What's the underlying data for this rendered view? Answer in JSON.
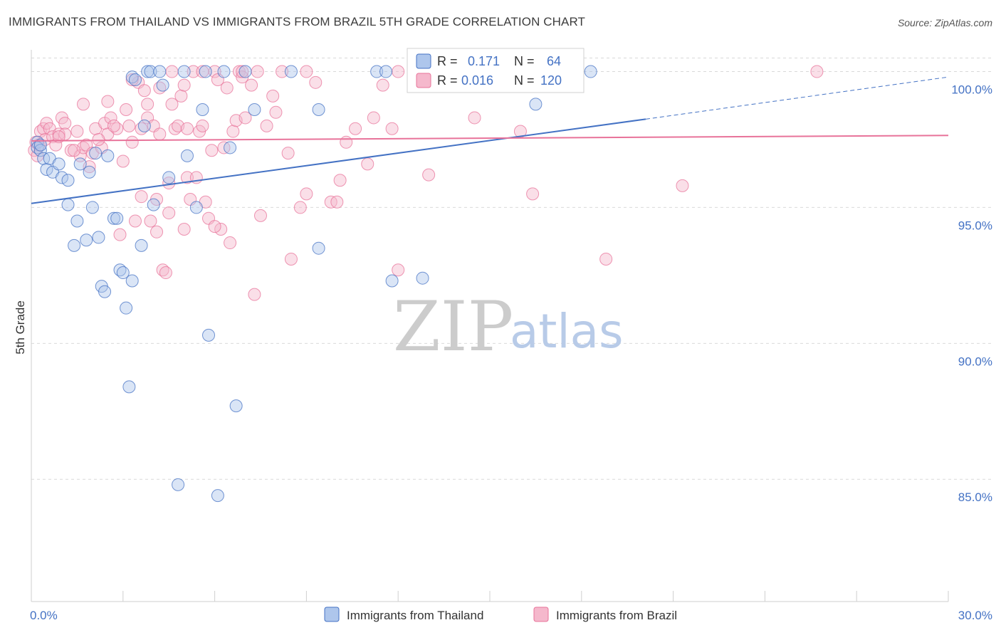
{
  "title": "IMMIGRANTS FROM THAILAND VS IMMIGRANTS FROM BRAZIL 5TH GRADE CORRELATION CHART",
  "source": "Source: ZipAtlas.com",
  "watermark": {
    "zip": "ZIP",
    "atlas": "atlas"
  },
  "colors": {
    "thailand": "#4472c4",
    "brazil": "#e8739a",
    "thailand_fill": "#aec6ec",
    "brazil_fill": "#f5b8cc",
    "grid": "#d9d9d9"
  },
  "legend_box": {
    "row1": {
      "r_label": "R =",
      "r_value": "0.171",
      "n_label": "N =",
      "n_value": "64"
    },
    "row2": {
      "r_label": "R =",
      "r_value": "0.016",
      "n_label": "N =",
      "n_value": "120"
    }
  },
  "chart_data": {
    "type": "scatter",
    "title": "IMMIGRANTS FROM THAILAND VS IMMIGRANTS FROM BRAZIL 5TH GRADE CORRELATION CHART",
    "xlabel": "",
    "ylabel": "5th Grade",
    "xlim": [
      0,
      30
    ],
    "ylim": [
      80.5,
      100.8
    ],
    "x_tick_labels": [
      "0.0%",
      "30.0%"
    ],
    "y_ticks": [
      85,
      90,
      95,
      100
    ],
    "y_tick_labels": [
      "85.0%",
      "90.0%",
      "95.0%",
      "100.0%"
    ],
    "legend": [
      "Immigrants from Thailand",
      "Immigrants from Brazil"
    ],
    "series": [
      {
        "name": "Immigrants from Thailand",
        "r": 0.171,
        "n": 64,
        "trend": {
          "x0": 0,
          "y0": 95.15,
          "x1": 20.1,
          "y1": 98.25,
          "dashed_to_x": 30,
          "dashed_to_y": 99.8
        },
        "points": [
          [
            0.2,
            97.4
          ],
          [
            0.2,
            97.2
          ],
          [
            0.3,
            97.1
          ],
          [
            0.3,
            97.3
          ],
          [
            0.4,
            96.8
          ],
          [
            0.5,
            96.4
          ],
          [
            0.6,
            96.8
          ],
          [
            0.7,
            96.3
          ],
          [
            0.9,
            96.6
          ],
          [
            1.0,
            96.1
          ],
          [
            1.2,
            96.0
          ],
          [
            1.2,
            95.1
          ],
          [
            1.4,
            93.6
          ],
          [
            1.5,
            94.5
          ],
          [
            1.6,
            96.6
          ],
          [
            1.8,
            93.8
          ],
          [
            1.9,
            96.3
          ],
          [
            2.0,
            95.0
          ],
          [
            2.1,
            97.0
          ],
          [
            2.2,
            93.9
          ],
          [
            2.3,
            92.1
          ],
          [
            2.4,
            91.9
          ],
          [
            2.5,
            96.9
          ],
          [
            2.7,
            94.6
          ],
          [
            2.8,
            94.6
          ],
          [
            2.9,
            92.7
          ],
          [
            3.0,
            92.6
          ],
          [
            3.1,
            91.3
          ],
          [
            3.2,
            88.4
          ],
          [
            3.3,
            92.3
          ],
          [
            3.3,
            99.8
          ],
          [
            3.4,
            99.7
          ],
          [
            3.6,
            93.6
          ],
          [
            3.7,
            98.0
          ],
          [
            3.8,
            100.0
          ],
          [
            3.9,
            100.0
          ],
          [
            4.0,
            95.1
          ],
          [
            4.2,
            100.0
          ],
          [
            4.3,
            99.5
          ],
          [
            4.5,
            96.1
          ],
          [
            4.8,
            84.8
          ],
          [
            5.0,
            100.0
          ],
          [
            5.1,
            96.9
          ],
          [
            5.4,
            95.0
          ],
          [
            5.6,
            98.6
          ],
          [
            5.7,
            100.0
          ],
          [
            5.8,
            90.3
          ],
          [
            6.1,
            84.4
          ],
          [
            6.3,
            100.0
          ],
          [
            6.5,
            97.2
          ],
          [
            6.7,
            87.7
          ],
          [
            7.0,
            100.0
          ],
          [
            7.3,
            98.6
          ],
          [
            8.5,
            100.0
          ],
          [
            9.4,
            98.6
          ],
          [
            9.4,
            93.5
          ],
          [
            11.3,
            100.0
          ],
          [
            11.6,
            100.0
          ],
          [
            11.8,
            92.3
          ],
          [
            12.8,
            92.4
          ],
          [
            13.1,
            99.9
          ],
          [
            14.3,
            99.8
          ],
          [
            16.5,
            98.8
          ],
          [
            18.3,
            100.0
          ]
        ]
      },
      {
        "name": "Immigrants from Brazil",
        "r": 0.016,
        "n": 120,
        "trend": {
          "x0": 0,
          "y0": 97.45,
          "x1": 30,
          "y1": 97.65
        },
        "points": [
          [
            0.1,
            97.1
          ],
          [
            0.15,
            97.4
          ],
          [
            0.2,
            96.9
          ],
          [
            0.25,
            97.3
          ],
          [
            0.3,
            97.8
          ],
          [
            0.4,
            97.9
          ],
          [
            0.45,
            97.5
          ],
          [
            0.5,
            98.1
          ],
          [
            0.6,
            97.9
          ],
          [
            0.7,
            97.6
          ],
          [
            0.8,
            97.3
          ],
          [
            0.9,
            97.7
          ],
          [
            1.0,
            98.3
          ],
          [
            1.1,
            98.1
          ],
          [
            1.1,
            97.7
          ],
          [
            1.3,
            97.1
          ],
          [
            1.5,
            97.8
          ],
          [
            1.6,
            96.9
          ],
          [
            1.7,
            97.2
          ],
          [
            1.7,
            98.8
          ],
          [
            1.8,
            97.3
          ],
          [
            1.9,
            96.5
          ],
          [
            2.0,
            97.0
          ],
          [
            2.1,
            97.9
          ],
          [
            2.3,
            97.2
          ],
          [
            2.4,
            98.1
          ],
          [
            2.5,
            97.7
          ],
          [
            2.5,
            98.9
          ],
          [
            2.6,
            98.3
          ],
          [
            2.8,
            97.9
          ],
          [
            2.9,
            94.0
          ],
          [
            3.0,
            96.7
          ],
          [
            3.1,
            98.6
          ],
          [
            3.2,
            98.0
          ],
          [
            3.3,
            97.4
          ],
          [
            3.4,
            94.5
          ],
          [
            3.5,
            99.6
          ],
          [
            3.6,
            97.9
          ],
          [
            3.7,
            99.3
          ],
          [
            3.8,
            98.8
          ],
          [
            3.8,
            98.3
          ],
          [
            3.9,
            94.5
          ],
          [
            4.0,
            98.0
          ],
          [
            4.1,
            95.3
          ],
          [
            4.1,
            94.1
          ],
          [
            4.2,
            97.7
          ],
          [
            4.3,
            92.7
          ],
          [
            4.4,
            92.6
          ],
          [
            4.5,
            94.8
          ],
          [
            4.6,
            98.8
          ],
          [
            4.7,
            97.9
          ],
          [
            4.8,
            98.0
          ],
          [
            4.9,
            99.1
          ],
          [
            5.0,
            99.5
          ],
          [
            5.1,
            97.9
          ],
          [
            5.1,
            96.1
          ],
          [
            5.2,
            95.3
          ],
          [
            5.3,
            100.0
          ],
          [
            5.4,
            96.1
          ],
          [
            5.5,
            97.8
          ],
          [
            5.6,
            98.0
          ],
          [
            5.7,
            95.2
          ],
          [
            5.8,
            94.6
          ],
          [
            5.9,
            97.1
          ],
          [
            6.0,
            100.0
          ],
          [
            6.1,
            99.7
          ],
          [
            6.2,
            94.2
          ],
          [
            6.3,
            97.2
          ],
          [
            6.4,
            99.4
          ],
          [
            6.6,
            97.8
          ],
          [
            6.7,
            98.2
          ],
          [
            6.8,
            100.0
          ],
          [
            6.9,
            99.8
          ],
          [
            7.0,
            98.3
          ],
          [
            7.2,
            99.5
          ],
          [
            7.4,
            100.0
          ],
          [
            7.5,
            94.7
          ],
          [
            7.7,
            98.0
          ],
          [
            8.0,
            98.5
          ],
          [
            8.2,
            100.0
          ],
          [
            8.4,
            97.0
          ],
          [
            8.5,
            93.1
          ],
          [
            9.0,
            95.5
          ],
          [
            9.3,
            99.6
          ],
          [
            9.8,
            95.2
          ],
          [
            10.1,
            96.0
          ],
          [
            10.3,
            97.4
          ],
          [
            10.6,
            97.9
          ],
          [
            11.0,
            96.6
          ],
          [
            11.2,
            98.3
          ],
          [
            11.5,
            99.5
          ],
          [
            11.8,
            97.9
          ],
          [
            12.0,
            100.0
          ],
          [
            13.0,
            96.2
          ],
          [
            14.5,
            98.3
          ],
          [
            16.0,
            97.8
          ],
          [
            16.4,
            95.5
          ],
          [
            18.8,
            93.1
          ],
          [
            21.3,
            95.8
          ],
          [
            25.7,
            100.0
          ],
          [
            7.3,
            91.8
          ],
          [
            6.0,
            94.3
          ],
          [
            4.5,
            95.9
          ],
          [
            2.2,
            97.5
          ],
          [
            3.6,
            95.4
          ],
          [
            5.0,
            94.2
          ],
          [
            6.5,
            93.7
          ],
          [
            8.8,
            95.0
          ],
          [
            10.0,
            95.2
          ],
          [
            12.0,
            92.7
          ],
          [
            3.3,
            99.7
          ],
          [
            4.6,
            100.0
          ],
          [
            6.9,
            100.0
          ],
          [
            9.0,
            100.0
          ],
          [
            5.6,
            100.0
          ],
          [
            1.4,
            97.1
          ],
          [
            0.9,
            97.6
          ],
          [
            2.7,
            98.0
          ],
          [
            4.2,
            99.4
          ],
          [
            7.9,
            99.1
          ]
        ]
      }
    ]
  }
}
